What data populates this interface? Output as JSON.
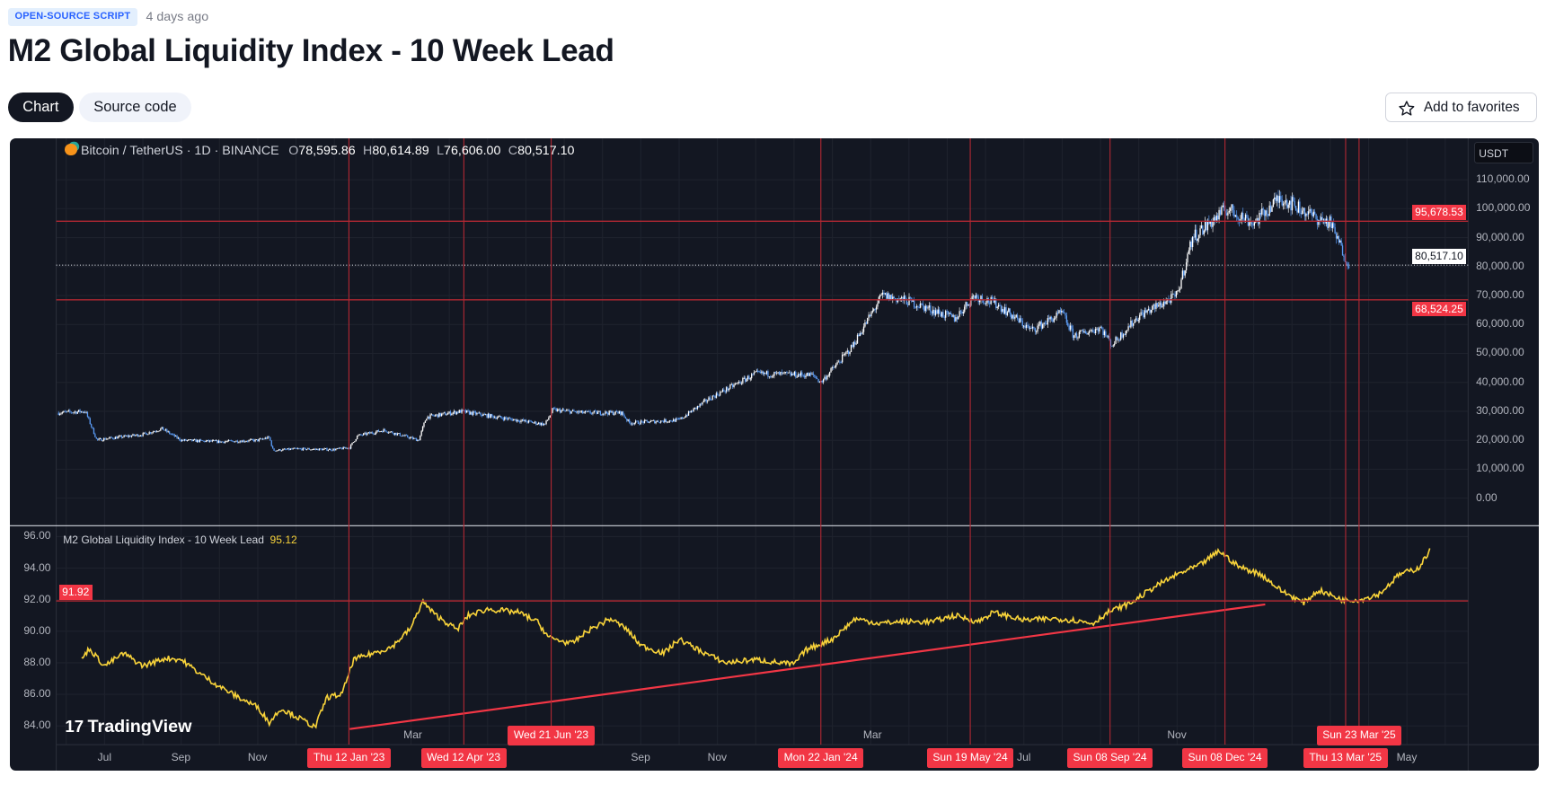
{
  "header": {
    "tag": "OPEN-SOURCE SCRIPT",
    "posted": "4 days ago",
    "title": "M2 Global Liquidity Index - 10 Week Lead"
  },
  "tabs": [
    {
      "label": "Chart",
      "active": true
    },
    {
      "label": "Source code",
      "active": false
    }
  ],
  "favorites_label": "Add to favorites",
  "legend": {
    "symbol": "Bitcoin / TetherUS · 1D · BINANCE",
    "o_key": "O",
    "o": "78,595.86",
    "h_key": "H",
    "h": "80,614.89",
    "l_key": "L",
    "l": "76,606.00",
    "c_key": "C",
    "c": "80,517.10"
  },
  "indicator": {
    "name": "M2 Global Liquidity Index - 10 Week Lead",
    "value": "95.12",
    "level_label": "91.92",
    "level": 91.92
  },
  "currency": "USDT",
  "price_axis": [
    "110,000.00",
    "100,000.00",
    "90,000.00",
    "80,000.00",
    "70,000.00",
    "60,000.00",
    "50,000.00",
    "40,000.00",
    "30,000.00",
    "20,000.00",
    "10,000.00",
    "0.00"
  ],
  "price_levels": {
    "upper": "95,678.53",
    "upper_value": 95678.53,
    "last": "80,517.10",
    "last_value": 80517.1,
    "lower": "68,524.25",
    "lower_value": 68524.25
  },
  "indicator_axis": [
    "96.00",
    "94.00",
    "92.00",
    "90.00",
    "88.00",
    "86.00",
    "84.00"
  ],
  "time_axis": [
    "Jul",
    "Sep",
    "Nov",
    "Mar",
    "Sep",
    "Nov",
    "Mar",
    "Jul",
    "Nov",
    "May"
  ],
  "time_markers": [
    "Thu 12 Jan '23",
    "Wed 12 Apr '23",
    "Wed 21 Jun '23",
    "Mon 22 Jan '24",
    "Sun 19 May '24",
    "Sun 08 Sep '24",
    "Sun 08 Dec '24",
    "Thu 13 Mar '25",
    "Sun 23 Mar '25"
  ],
  "logo": "TradingView",
  "colors": {
    "bg": "#131722",
    "red": "#f23645",
    "line": "#f7d23a",
    "up": "#ffffff",
    "down": "#5b9cf6"
  },
  "chart_data": {
    "type": "line",
    "x_unit": "months since Jan 2022",
    "price_series": {
      "name": "BTCUSDT",
      "points": [
        [
          4.8,
          29500
        ],
        [
          5.5,
          30000
        ],
        [
          5.8,
          20000
        ],
        [
          6,
          20500
        ],
        [
          7,
          22000
        ],
        [
          7.5,
          24000
        ],
        [
          8,
          20000
        ],
        [
          9,
          19500
        ],
        [
          10,
          20000
        ],
        [
          10.3,
          21000
        ],
        [
          10.4,
          16500
        ],
        [
          11,
          17000
        ],
        [
          12,
          16800
        ],
        [
          12.4,
          17500
        ],
        [
          12.6,
          21500
        ],
        [
          13.3,
          23500
        ],
        [
          14.2,
          20000
        ],
        [
          14.4,
          28000
        ],
        [
          15.3,
          30000
        ],
        [
          16,
          28500
        ],
        [
          17,
          26500
        ],
        [
          17.5,
          25500
        ],
        [
          17.7,
          30500
        ],
        [
          18.5,
          29500
        ],
        [
          19.5,
          29500
        ],
        [
          19.7,
          26000
        ],
        [
          21,
          27000
        ],
        [
          21.8,
          34500
        ],
        [
          23,
          43000
        ],
        [
          24.5,
          42500
        ],
        [
          24.7,
          40000
        ],
        [
          25.5,
          52000
        ],
        [
          26.3,
          70000
        ],
        [
          27,
          68000
        ],
        [
          28.2,
          62000
        ],
        [
          28.7,
          70000
        ],
        [
          29.3,
          67000
        ],
        [
          30.2,
          58000
        ],
        [
          31,
          64000
        ],
        [
          31.3,
          56000
        ],
        [
          32,
          59000
        ],
        [
          32.3,
          53000
        ],
        [
          33,
          63000
        ],
        [
          34,
          70000
        ],
        [
          34.4,
          90000
        ],
        [
          35.3,
          100000
        ],
        [
          36,
          95000
        ],
        [
          36.7,
          104000
        ],
        [
          37.6,
          97000
        ],
        [
          38,
          95000
        ],
        [
          38.3,
          86000
        ],
        [
          38.5,
          80517
        ]
      ]
    },
    "indicator_series": {
      "name": "M2 Global Liquidity Index - 10 Week Lead",
      "points": [
        [
          5.4,
          88.2
        ],
        [
          5.6,
          88.9
        ],
        [
          6,
          87.8
        ],
        [
          6.5,
          88.6
        ],
        [
          7,
          87.8
        ],
        [
          7.6,
          88.3
        ],
        [
          8,
          88.2
        ],
        [
          8.5,
          87.3
        ],
        [
          9,
          86.5
        ],
        [
          9.5,
          85.8
        ],
        [
          10,
          85.2
        ],
        [
          10.3,
          84.2
        ],
        [
          10.6,
          85.1
        ],
        [
          11,
          84.6
        ],
        [
          11.3,
          84.2
        ],
        [
          11.5,
          83.9
        ],
        [
          11.8,
          85.8
        ],
        [
          12.2,
          86
        ],
        [
          12.5,
          88.2
        ],
        [
          13,
          88.6
        ],
        [
          13.5,
          89
        ],
        [
          14,
          90.2
        ],
        [
          14.3,
          91.9
        ],
        [
          14.6,
          91.1
        ],
        [
          15.2,
          90.1
        ],
        [
          15.5,
          91
        ],
        [
          16,
          91.4
        ],
        [
          16.8,
          91.2
        ],
        [
          17.3,
          90.6
        ],
        [
          17.6,
          89.6
        ],
        [
          18.2,
          89.2
        ],
        [
          18.6,
          90
        ],
        [
          19.2,
          90.8
        ],
        [
          19.6,
          90.2
        ],
        [
          20,
          89.1
        ],
        [
          20.6,
          88.6
        ],
        [
          21,
          89.5
        ],
        [
          21.6,
          88.7
        ],
        [
          22.2,
          88
        ],
        [
          23,
          88.2
        ],
        [
          23.6,
          88
        ],
        [
          24,
          87.9
        ],
        [
          24.3,
          88.8
        ],
        [
          25,
          89.5
        ],
        [
          25.6,
          90.8
        ],
        [
          26.2,
          90.5
        ],
        [
          26.8,
          90.6
        ],
        [
          27.6,
          90.6
        ],
        [
          28.2,
          91
        ],
        [
          28.8,
          90.6
        ],
        [
          29.2,
          91.2
        ],
        [
          30,
          90.7
        ],
        [
          30.8,
          90.8
        ],
        [
          31.3,
          90.7
        ],
        [
          31.8,
          90.5
        ],
        [
          32.2,
          91.2
        ],
        [
          32.8,
          91.8
        ],
        [
          33.4,
          92.8
        ],
        [
          34,
          93.6
        ],
        [
          34.6,
          94.2
        ],
        [
          35.1,
          95.1
        ],
        [
          35.6,
          94.1
        ],
        [
          36.2,
          93.6
        ],
        [
          36.7,
          92.6
        ],
        [
          37.3,
          91.8
        ],
        [
          37.7,
          92.6
        ],
        [
          38.3,
          92
        ],
        [
          38.8,
          92
        ],
        [
          39.3,
          92.4
        ],
        [
          39.8,
          93.6
        ],
        [
          40.3,
          94
        ],
        [
          40.6,
          95.12
        ]
      ]
    },
    "trendline": [
      [
        12.4,
        83.8
      ],
      [
        36.3,
        91.7
      ]
    ],
    "marker_months": [
      12.38,
      15.38,
      17.66,
      24.7,
      28.6,
      32.25,
      35.25,
      38.4,
      38.75
    ],
    "price_ylim": [
      0,
      110000
    ],
    "indicator_ylim": [
      84,
      96
    ]
  }
}
